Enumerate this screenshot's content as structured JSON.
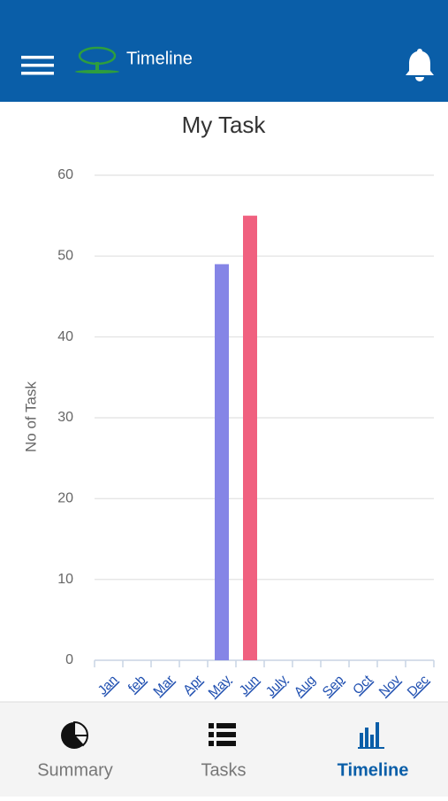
{
  "header": {
    "title": "Timeline"
  },
  "chart_data": {
    "type": "bar",
    "title": "My Task",
    "y_label": "No of Task",
    "categories": [
      "Jan",
      "feb",
      "Mar",
      "Apr",
      "May",
      "Jun",
      "July",
      "Aug",
      "Sep",
      "Oct",
      "Nov",
      "Dec"
    ],
    "values": [
      0,
      0,
      0,
      0,
      49,
      55,
      0,
      0,
      0,
      0,
      0,
      0
    ],
    "colors": [
      null,
      null,
      null,
      null,
      "#8585e6",
      "#f0607f",
      null,
      null,
      null,
      null,
      null,
      null
    ],
    "ylim": [
      0,
      60
    ],
    "yticks": [
      0,
      10,
      20,
      30,
      40,
      50,
      60
    ],
    "grid": true
  },
  "tabs": [
    {
      "label": "Summary"
    },
    {
      "label": "Tasks"
    },
    {
      "label": "Timeline",
      "active": true
    }
  ]
}
